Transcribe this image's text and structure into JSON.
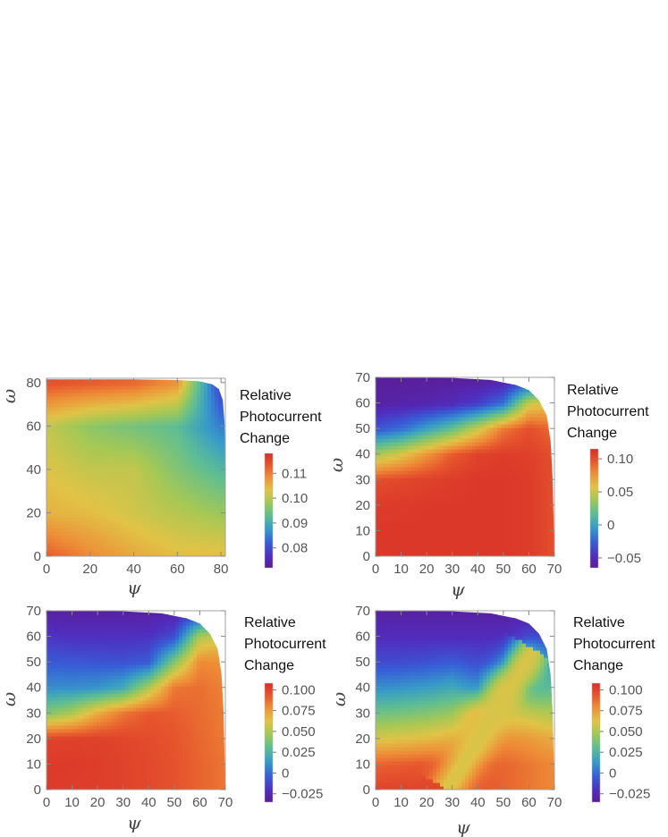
{
  "chart_data": [
    {
      "type": "heatmap",
      "panel": "top-left",
      "xlabel": "ψ",
      "ylabel": "ω",
      "xlim": [
        0,
        82
      ],
      "ylim": [
        0,
        82
      ],
      "xticks": [
        "0",
        "20",
        "40",
        "60",
        "80"
      ],
      "yticks": [
        "0",
        "20",
        "40",
        "60",
        "80"
      ],
      "domain_boundary": [
        [
          0,
          81.5
        ],
        [
          40,
          81.5
        ],
        [
          60,
          81.2
        ],
        [
          70,
          80.6
        ],
        [
          76,
          79.2
        ],
        [
          79,
          77
        ],
        [
          80.8,
          72
        ],
        [
          81.6,
          62
        ],
        [
          82,
          45
        ],
        [
          82,
          0
        ]
      ],
      "colorbar": {
        "title": [
          "Relative",
          "Photocurrent",
          "Change"
        ],
        "min": 0.072,
        "max": 0.118,
        "ticks": [
          "0.08",
          "0.09",
          "0.10",
          "0.11"
        ],
        "tick_values": [
          0.08,
          0.09,
          0.1,
          0.11
        ]
      },
      "surface": {
        "psi": [
          0,
          20,
          40,
          60,
          80
        ],
        "omega": [
          0,
          20,
          40,
          60,
          80
        ],
        "values": [
          [
            0.113,
            0.109,
            0.106,
            0.104,
            0.104
          ],
          [
            0.105,
            0.104,
            0.102,
            0.1,
            0.098
          ],
          [
            0.103,
            0.101,
            0.101,
            0.096,
            0.092
          ],
          [
            0.101,
            0.097,
            0.095,
            0.093,
            0.085
          ],
          [
            0.114,
            0.113,
            0.112,
            0.108,
            0.078
          ]
        ]
      }
    },
    {
      "type": "heatmap",
      "panel": "top-right",
      "xlabel": "ψ",
      "ylabel": "ω",
      "xlim": [
        0,
        70
      ],
      "ylim": [
        0,
        70
      ],
      "xticks": [
        "0",
        "10",
        "20",
        "30",
        "40",
        "50",
        "60",
        "70"
      ],
      "yticks": [
        "0",
        "10",
        "20",
        "30",
        "40",
        "50",
        "60",
        "70"
      ],
      "domain_boundary": [
        [
          0,
          70
        ],
        [
          30,
          69.8
        ],
        [
          45,
          69
        ],
        [
          55,
          67
        ],
        [
          60,
          65
        ],
        [
          64,
          61
        ],
        [
          67,
          55
        ],
        [
          68.5,
          45
        ],
        [
          69.3,
          30
        ],
        [
          70,
          0
        ]
      ],
      "colorbar": {
        "title": [
          "Relative",
          "Photocurrent",
          "Change"
        ],
        "min": -0.065,
        "max": 0.115,
        "ticks": [
          "0.10",
          "0.05",
          "0",
          "−0.05"
        ],
        "tick_values": [
          0.1,
          0.05,
          0,
          -0.05
        ]
      },
      "surface": {
        "psi": [
          0,
          10,
          20,
          30,
          40,
          50,
          60,
          70
        ],
        "omega": [
          0,
          10,
          20,
          30,
          40,
          50,
          60,
          70
        ],
        "values": [
          [
            0.11,
            0.11,
            0.11,
            0.11,
            0.11,
            0.11,
            0.108,
            0.1
          ],
          [
            0.11,
            0.11,
            0.11,
            0.11,
            0.11,
            0.11,
            0.108,
            0.1
          ],
          [
            0.108,
            0.109,
            0.11,
            0.11,
            0.11,
            0.11,
            0.108,
            0.1
          ],
          [
            0.1,
            0.103,
            0.106,
            0.108,
            0.11,
            0.11,
            0.108,
            0.1
          ],
          [
            0.04,
            0.055,
            0.075,
            0.095,
            0.105,
            0.108,
            0.106,
            0.1
          ],
          [
            -0.03,
            -0.02,
            0.0,
            0.02,
            0.05,
            0.085,
            0.1,
            0.09
          ],
          [
            -0.058,
            -0.056,
            -0.054,
            -0.05,
            -0.04,
            -0.02,
            0.05,
            0.06
          ],
          [
            -0.062,
            -0.062,
            -0.062,
            -0.062,
            -0.062,
            -0.06,
            -0.05,
            -0.03
          ]
        ]
      }
    },
    {
      "type": "heatmap",
      "panel": "bottom-left",
      "xlabel": "ψ",
      "ylabel": "ω",
      "xlim": [
        0,
        70
      ],
      "ylim": [
        0,
        70
      ],
      "xticks": [
        "0",
        "10",
        "20",
        "30",
        "40",
        "50",
        "60",
        "70"
      ],
      "yticks": [
        "0",
        "10",
        "20",
        "30",
        "40",
        "50",
        "60",
        "70"
      ],
      "domain_boundary": [
        [
          0,
          70
        ],
        [
          30,
          69.8
        ],
        [
          45,
          69
        ],
        [
          55,
          67
        ],
        [
          60,
          65
        ],
        [
          64,
          61
        ],
        [
          67,
          55
        ],
        [
          68.5,
          45
        ],
        [
          69.3,
          30
        ],
        [
          70,
          0
        ]
      ],
      "colorbar": {
        "title": [
          "Relative",
          "Photocurrent",
          "Change"
        ],
        "min": -0.035,
        "max": 0.108,
        "ticks": [
          "0.100",
          "0.075",
          "0.050",
          "0.025",
          "0",
          "−0.025"
        ],
        "tick_values": [
          0.1,
          0.075,
          0.05,
          0.025,
          0,
          -0.025
        ]
      },
      "surface": {
        "psi": [
          0,
          10,
          20,
          30,
          40,
          50,
          60,
          70
        ],
        "omega": [
          0,
          10,
          20,
          30,
          40,
          50,
          60,
          70
        ],
        "values": [
          [
            0.103,
            0.102,
            0.102,
            0.1,
            0.098,
            0.095,
            0.09,
            0.085
          ],
          [
            0.103,
            0.103,
            0.102,
            0.1,
            0.098,
            0.095,
            0.09,
            0.085
          ],
          [
            0.1,
            0.101,
            0.101,
            0.099,
            0.097,
            0.094,
            0.089,
            0.084
          ],
          [
            0.04,
            0.05,
            0.07,
            0.085,
            0.093,
            0.092,
            0.088,
            0.083
          ],
          [
            0.01,
            0.01,
            0.012,
            0.02,
            0.05,
            0.085,
            0.087,
            0.082
          ],
          [
            -0.005,
            -0.006,
            -0.007,
            -0.008,
            -0.005,
            0.04,
            0.08,
            0.078
          ],
          [
            -0.018,
            -0.02,
            -0.02,
            -0.02,
            -0.019,
            -0.01,
            0.05,
            0.06
          ],
          [
            -0.03,
            -0.03,
            -0.03,
            -0.03,
            -0.03,
            -0.028,
            -0.02,
            -0.01
          ]
        ]
      }
    },
    {
      "type": "heatmap",
      "panel": "bottom-right",
      "xlabel": "ψ",
      "ylabel": "ω",
      "xlim": [
        0,
        70
      ],
      "ylim": [
        0,
        70
      ],
      "xticks": [
        "0",
        "10",
        "20",
        "30",
        "40",
        "50",
        "60",
        "70"
      ],
      "yticks": [
        "0",
        "10",
        "20",
        "30",
        "40",
        "50",
        "60",
        "70"
      ],
      "domain_boundary": [
        [
          0,
          70
        ],
        [
          30,
          69.8
        ],
        [
          45,
          69
        ],
        [
          55,
          67
        ],
        [
          60,
          65
        ],
        [
          64,
          61
        ],
        [
          67,
          55
        ],
        [
          68.5,
          45
        ],
        [
          69.3,
          30
        ],
        [
          70,
          0
        ]
      ],
      "colorbar": {
        "title": [
          "Relative",
          "Photocurrent",
          "Change"
        ],
        "min": -0.035,
        "max": 0.108,
        "ticks": [
          "0.100",
          "0.075",
          "0.050",
          "0.025",
          "0",
          "−0.025"
        ],
        "tick_values": [
          0.1,
          0.075,
          0.05,
          0.025,
          0,
          -0.025
        ]
      },
      "surface": {
        "psi": [
          0,
          10,
          20,
          30,
          40,
          50,
          60,
          70
        ],
        "omega": [
          0,
          10,
          20,
          30,
          40,
          50,
          60,
          70
        ],
        "values": [
          [
            0.1,
            0.1,
            0.1,
            0.098,
            0.095,
            0.09,
            0.085,
            0.08
          ],
          [
            0.09,
            0.092,
            0.094,
            0.095,
            0.094,
            0.09,
            0.085,
            0.08
          ],
          [
            0.06,
            0.062,
            0.065,
            0.07,
            0.075,
            0.08,
            0.075,
            0.07
          ],
          [
            0.035,
            0.037,
            0.04,
            0.045,
            0.07,
            0.06,
            0.055,
            0.05
          ],
          [
            0.01,
            0.012,
            0.015,
            0.02,
            0.01,
            0.06,
            0.02,
            0.03
          ],
          [
            -0.01,
            -0.01,
            -0.008,
            -0.005,
            -0.01,
            -0.005,
            0.05,
            0.0
          ],
          [
            -0.022,
            -0.022,
            -0.022,
            -0.022,
            -0.022,
            -0.022,
            -0.01,
            -0.01
          ],
          [
            -0.03,
            -0.03,
            -0.03,
            -0.03,
            -0.03,
            -0.03,
            -0.03,
            -0.025
          ]
        ],
        "diagonal_ridge": {
          "from": [
            28,
            0
          ],
          "to": [
            62,
            55
          ],
          "value": 0.06,
          "width": 5
        }
      }
    }
  ]
}
